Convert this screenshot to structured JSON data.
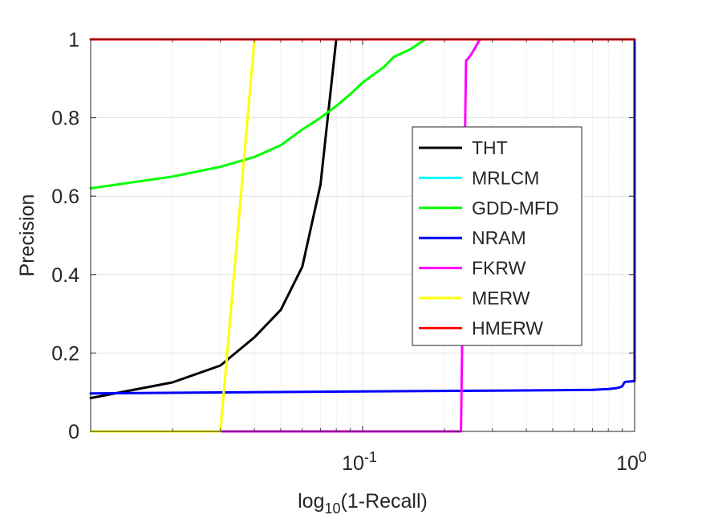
{
  "chart_data": {
    "type": "line",
    "title": "",
    "xlabel_base": "log",
    "xlabel_sub": "10",
    "xlabel_rest": "(1-Recall)",
    "ylabel": "Precision",
    "x_scale": "log",
    "xlim": [
      0.01,
      1.0
    ],
    "ylim": [
      0,
      1
    ],
    "grid": true,
    "legend_position": "right-center",
    "x_ticks": [
      {
        "value": 0.1,
        "base": "10",
        "exp": "-1"
      },
      {
        "value": 1.0,
        "base": "10",
        "exp": "0"
      }
    ],
    "y_ticks": [
      {
        "value": 0,
        "label": "0"
      },
      {
        "value": 0.2,
        "label": "0.2"
      },
      {
        "value": 0.4,
        "label": "0.4"
      },
      {
        "value": 0.6,
        "label": "0.6"
      },
      {
        "value": 0.8,
        "label": "0.8"
      },
      {
        "value": 1,
        "label": "1"
      }
    ],
    "series": [
      {
        "name": "THT",
        "color": "#000000",
        "x": [
          0.01,
          0.02,
          0.03,
          0.04,
          0.05,
          0.06,
          0.07,
          0.08
        ],
        "y": [
          0.085,
          0.125,
          0.168,
          0.24,
          0.31,
          0.42,
          0.63,
          1.0
        ]
      },
      {
        "name": "MRLCM",
        "color": "#00ffff",
        "x": [
          0.01,
          1.0
        ],
        "y": [
          1.0,
          1.0
        ]
      },
      {
        "name": "GDD-MFD",
        "color": "#00ff00",
        "x": [
          0.01,
          0.02,
          0.03,
          0.04,
          0.05,
          0.06,
          0.07,
          0.08,
          0.09,
          0.1,
          0.12,
          0.13,
          0.15,
          0.17
        ],
        "y": [
          0.62,
          0.65,
          0.675,
          0.7,
          0.73,
          0.77,
          0.8,
          0.83,
          0.86,
          0.89,
          0.93,
          0.955,
          0.975,
          1.0
        ]
      },
      {
        "name": "NRAM",
        "color": "#0000ff",
        "x": [
          0.01,
          0.1,
          0.3,
          0.5,
          0.7,
          0.8,
          0.85,
          0.88,
          0.9,
          0.92,
          0.95,
          0.99,
          1.0,
          1.0
        ],
        "y": [
          0.097,
          0.102,
          0.104,
          0.105,
          0.106,
          0.108,
          0.11,
          0.112,
          0.115,
          0.126,
          0.127,
          0.128,
          0.128,
          1.0
        ]
      },
      {
        "name": "FKRW",
        "color": "#ff00ff",
        "x": [
          0.01,
          0.2,
          0.23,
          0.235,
          0.24,
          0.25,
          0.27,
          1.0
        ],
        "y": [
          0.0,
          0.0,
          0.0,
          0.5,
          0.945,
          0.96,
          1.0,
          1.0
        ]
      },
      {
        "name": "MERW",
        "color": "#ffff00",
        "x": [
          0.01,
          0.03,
          0.04
        ],
        "y": [
          0.0,
          0.0,
          1.0
        ]
      },
      {
        "name": "HMERW",
        "color": "#ff0000",
        "x": [
          0.01,
          1.0
        ],
        "y": [
          1.0,
          1.0
        ]
      }
    ]
  }
}
